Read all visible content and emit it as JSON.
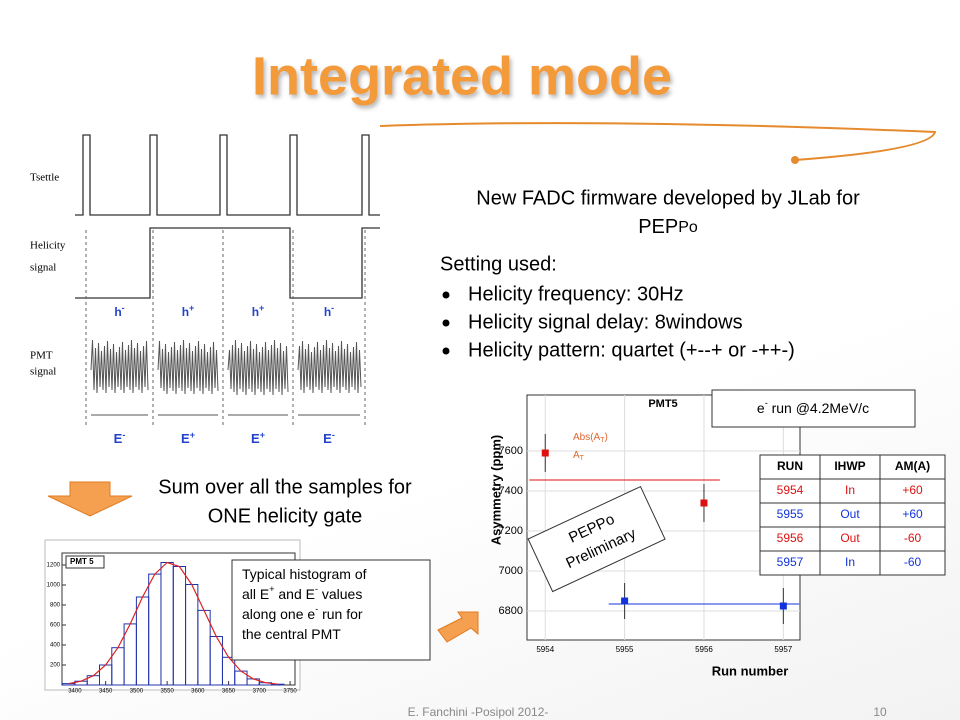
{
  "title": "Integrated mode",
  "firmware_note": [
    "New FADC firmware developed by JLab for",
    "PEP",
    "Po"
  ],
  "settings": {
    "heading": "Setting used:",
    "bullets": [
      "Helicity frequency: 30Hz",
      "Helicity signal delay: 8windows",
      "Helicity pattern: quartet (+--+ or -++-)"
    ]
  },
  "timing": {
    "rows": [
      "Tsettle",
      "Helicity",
      "signal",
      "PMT",
      "signal"
    ],
    "h_labels": [
      {
        "base": "h",
        "sup": "-"
      },
      {
        "base": "h",
        "sup": "+"
      },
      {
        "base": "h",
        "sup": "+"
      },
      {
        "base": "h",
        "sup": "-"
      }
    ],
    "e_labels": [
      {
        "base": "E",
        "sup": "-"
      },
      {
        "base": "E",
        "sup": "+"
      },
      {
        "base": "E",
        "sup": "+"
      },
      {
        "base": "E",
        "sup": "-"
      }
    ]
  },
  "sum_note": [
    "Sum over all the samples for",
    "ONE helicity gate"
  ],
  "histogram": {
    "title": "PMT 5",
    "color": "#2233aa",
    "fit_color": "#dd2222",
    "bins": [
      3380,
      3400,
      3420,
      3440,
      3460,
      3480,
      3500,
      3520,
      3540,
      3560,
      3580,
      3600,
      3620,
      3640,
      3660,
      3680,
      3700,
      3720,
      3740
    ],
    "counts": [
      14,
      38,
      93,
      200,
      373,
      611,
      880,
      1109,
      1225,
      1185,
      1005,
      746,
      485,
      277,
      139,
      61,
      23,
      8
    ],
    "xlim": [
      3379,
      3758
    ],
    "ylim": [
      0,
      1320
    ],
    "xticks": [
      3400,
      3450,
      3500,
      3550,
      3600,
      3650,
      3700,
      3750
    ],
    "yticks": [
      200,
      400,
      600,
      800,
      1000,
      1200
    ]
  },
  "histogram_note": [
    "Typical histogram of",
    "all E",
    "+",
    " and E",
    "-",
    " values",
    "along one e",
    "-",
    " run for",
    "the central  PMT"
  ],
  "run_box": [
    "e",
    "-",
    " run @4.2MeV/c"
  ],
  "scatter": {
    "title": "PMT5",
    "ylabel": "Asymmetry (ppm)",
    "xlabel": "Run number",
    "x": [
      5954,
      5955,
      5956,
      5957
    ],
    "y": [
      7590,
      6850,
      7340,
      6825
    ],
    "err": [
      95,
      90,
      95,
      90
    ],
    "colors": [
      "#dd1111",
      "#1133dd",
      "#dd1111",
      "#1133dd"
    ],
    "fits": [
      {
        "value": 7455,
        "from": 5953.8,
        "to": 5956.2,
        "color": "#dd1111"
      },
      {
        "value": 6835,
        "from": 5954.8,
        "to": 5957.2,
        "color": "#1133dd"
      }
    ],
    "legend": [
      [
        "Abs(A",
        "T",
        ")"
      ],
      [
        "A",
        "T"
      ]
    ],
    "stamp": [
      "PEPPo",
      "Preliminary"
    ],
    "xlim": [
      5953.77,
      5957.21
    ],
    "ylim": [
      6655,
      7880
    ],
    "xticks": [
      5954,
      5955,
      5956,
      5957
    ],
    "yticks": [
      6800,
      7000,
      7200,
      7400,
      7600
    ]
  },
  "table": {
    "header": [
      "RUN",
      "IHWP",
      "AM(A)"
    ],
    "rows": [
      [
        "5954",
        "In",
        "+60"
      ],
      [
        "5955",
        "Out",
        "+60"
      ],
      [
        "5956",
        "Out",
        "-60"
      ],
      [
        "5957",
        "In",
        "-60"
      ]
    ]
  },
  "footer": "E. Fanchini -Posipol 2012-",
  "page_number": "10"
}
